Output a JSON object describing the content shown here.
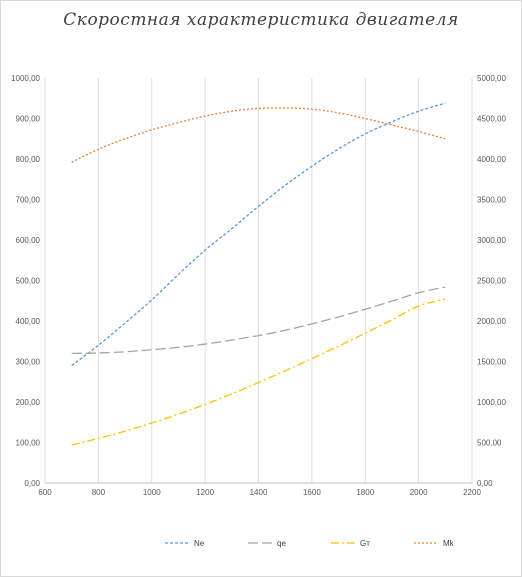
{
  "chart_data": {
    "type": "line",
    "title": "Скоростная характеристика двигателя",
    "x_ticks": [
      "600",
      "800",
      "1000",
      "1200",
      "1400",
      "1600",
      "1800",
      "2000",
      "2200"
    ],
    "y_left_ticks": [
      "0,00",
      "100,00",
      "200,00",
      "300,00",
      "400,00",
      "500,00",
      "600,00",
      "700,00",
      "800,00",
      "900,00",
      "1000,00"
    ],
    "y_right_ticks": [
      "0,00",
      "500,00",
      "1000,00",
      "1500,00",
      "2000,00",
      "2500,00",
      "3000,00",
      "3500,00",
      "4000,00",
      "4500,00",
      "5000,00"
    ],
    "xlim": [
      600,
      2200
    ],
    "ylim_left": [
      0,
      1000
    ],
    "ylim_right": [
      0,
      5000
    ],
    "grid": "vertical",
    "legend_position": "bottom",
    "x": [
      700,
      800,
      900,
      1000,
      1100,
      1200,
      1300,
      1400,
      1500,
      1600,
      1700,
      1800,
      1900,
      2000,
      2100
    ],
    "series": [
      {
        "name": "Ne",
        "axis": "left",
        "color": "#5B9BD5",
        "dash": "3,2",
        "values": [
          290,
          340,
          395,
          452,
          515,
          575,
          628,
          683,
          735,
          782,
          825,
          862,
          892,
          918,
          938
        ]
      },
      {
        "name": "qe",
        "axis": "left",
        "color": "#A5A5A5",
        "dash": "10,4",
        "values": [
          320,
          321,
          324,
          329,
          335,
          343,
          353,
          364,
          377,
          393,
          410,
          429,
          449,
          470,
          484
        ]
      },
      {
        "name": "Gт",
        "axis": "left",
        "color": "#FFC000",
        "dash": "8,3,2,3",
        "values": [
          94,
          110,
          128,
          148,
          170,
          194,
          220,
          248,
          277,
          307,
          338,
          370,
          403,
          437,
          454
        ]
      },
      {
        "name": "Mk",
        "axis": "right",
        "color": "#ED7D31",
        "dash": "2,2",
        "values": [
          3960,
          4120,
          4250,
          4360,
          4450,
          4530,
          4590,
          4625,
          4630,
          4615,
          4570,
          4500,
          4420,
          4340,
          4250
        ]
      }
    ]
  }
}
